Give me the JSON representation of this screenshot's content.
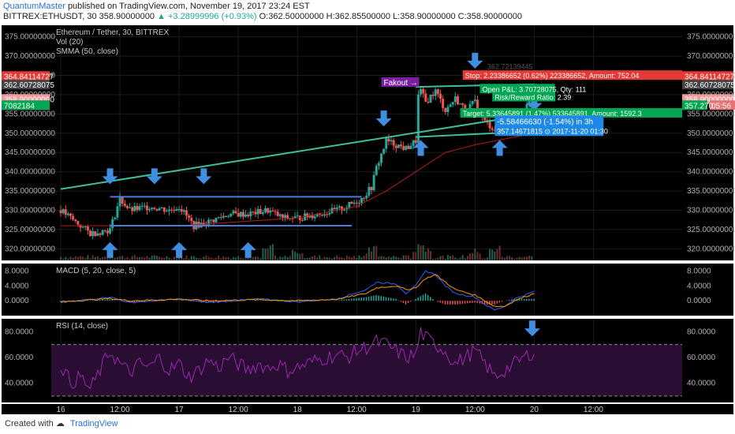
{
  "header": {
    "author": "QuantumMaster",
    "published_text": "published on TradingView.com, November 19, 2017 23:24 EST",
    "symbol": "BITTREX:ETHUSDT, 30",
    "last": "358.90000000",
    "change": "▲ +3.28999996 (+0.93%)",
    "o": "O:362.50000000",
    "h": "H:362.85500000",
    "l": "L:358.90000000",
    "c": "C:358.90000000"
  },
  "footer": {
    "created_with": "Created with",
    "brand": "TradingView"
  },
  "colors": {
    "bg": "#000000",
    "up": "#26a69a",
    "down": "#ef5350",
    "trend": "#3fbf9f",
    "support": "#4a7bd8",
    "smma": "#b71c1c",
    "macd": "#2962ff",
    "signal": "#ff9800",
    "rsi": "#9c27b0",
    "arrow": "#3f8fe0",
    "panel_text": "#b0b0b0"
  },
  "chart_data": [
    {
      "type": "candlestick",
      "title": "Ethereum / Tether, 30, BITTREX",
      "legend": [
        "Vol (20)",
        "SMMA (50, close)"
      ],
      "ylim": [
        317,
        378
      ],
      "yticks": [
        "375.00000000",
        "370.00000000",
        "365.00000000",
        "360.00000000",
        "355.00000000",
        "350.00000000",
        "345.00000000",
        "340.00000000",
        "335.00000000",
        "330.00000000",
        "325.00000000",
        "320.00000000"
      ],
      "ytick_values": [
        375,
        370,
        365,
        360,
        355,
        350,
        345,
        340,
        335,
        330,
        325,
        320
      ],
      "xticks": [
        "16",
        "12:00",
        "17",
        "12:00",
        "18",
        "12:00",
        "19",
        "12:00",
        "20",
        "12:00"
      ],
      "xtick_hours": [
        0,
        12,
        24,
        36,
        48,
        60,
        72,
        84,
        96,
        108
      ],
      "price_path": [
        [
          0,
          330
        ],
        [
          3,
          327
        ],
        [
          6,
          324
        ],
        [
          10,
          325
        ],
        [
          12,
          333
        ],
        [
          14,
          330
        ],
        [
          18,
          331
        ],
        [
          22,
          330
        ],
        [
          24,
          331
        ],
        [
          27,
          326
        ],
        [
          30,
          327
        ],
        [
          34,
          329
        ],
        [
          38,
          329
        ],
        [
          42,
          330
        ],
        [
          45,
          328
        ],
        [
          48,
          328
        ],
        [
          52,
          329
        ],
        [
          56,
          330
        ],
        [
          58,
          331
        ],
        [
          61,
          333
        ],
        [
          63,
          336
        ],
        [
          64,
          341
        ],
        [
          66,
          348
        ],
        [
          68,
          347
        ],
        [
          70,
          346
        ],
        [
          71,
          347
        ],
        [
          72,
          348
        ],
        [
          72.6,
          362
        ],
        [
          74,
          358
        ],
        [
          76,
          361
        ],
        [
          78,
          356
        ],
        [
          80,
          359
        ],
        [
          82,
          356
        ],
        [
          84,
          358
        ],
        [
          86,
          353
        ],
        [
          88,
          351
        ],
        [
          90,
          354
        ],
        [
          92,
          356
        ],
        [
          94,
          357
        ],
        [
          96,
          358.9
        ]
      ],
      "volume_spikes_hours": [
        42,
        48,
        63,
        72.6,
        74,
        84,
        88
      ],
      "smma_path": [
        [
          0,
          326
        ],
        [
          24,
          326
        ],
        [
          48,
          328
        ],
        [
          60,
          331
        ],
        [
          66,
          335
        ],
        [
          72,
          340
        ],
        [
          78,
          345
        ],
        [
          84,
          347
        ],
        [
          96,
          350
        ]
      ],
      "trendlines": [
        [
          [
            0,
            335.5
          ],
          [
            96,
            355
          ]
        ],
        [
          [
            72,
            349
          ],
          [
            96,
            350.5
          ]
        ],
        [
          [
            72,
            362
          ],
          [
            96,
            362.7
          ]
        ]
      ],
      "support_lines": [
        [
          [
            10,
            333.5
          ],
          [
            61,
            333.5
          ]
        ],
        [
          [
            10,
            326
          ],
          [
            59,
            326
          ]
        ]
      ],
      "arrows_down": [
        [
          10,
          338
        ],
        [
          19,
          338
        ],
        [
          29,
          338
        ],
        [
          65.5,
          353
        ],
        [
          84,
          368
        ],
        [
          96,
          357
        ]
      ],
      "arrows_up": [
        [
          10,
          320.5
        ],
        [
          24,
          320.5
        ],
        [
          38,
          320.5
        ],
        [
          73,
          347
        ],
        [
          89,
          347
        ]
      ],
      "price_labels": [
        {
          "text": "364.84114727",
          "color": "#e53935",
          "price": 364.84
        },
        {
          "text": "362.60728075",
          "color": "#444444",
          "price": 362.61
        },
        {
          "text": "358.90000000",
          "color": "#ef9a9a",
          "price": 358.9
        },
        {
          "text": "05:56",
          "color": "#e57373",
          "price": 357.27
        },
        {
          "text": "357.270",
          "color": "#00a651",
          "price": 357.27
        }
      ],
      "left_price_labels": [
        {
          "text": "364.84114727",
          "color": "#e53935",
          "price": 364.84
        },
        {
          "text": "362.60728075",
          "color": "#444444",
          "price": 362.61
        },
        {
          "text": "358.90000000",
          "color": "#ef9a9a",
          "price": 358.9
        },
        {
          "text": "05:56",
          "color": "#e57373",
          "price": 357.27
        },
        {
          "text": "7082184",
          "color": "#00a651",
          "price": 357.27
        }
      ],
      "annotations": {
        "fakeout": "Fakout →",
        "faded_label": "362.72139445",
        "stop": "Stop: 2.23386652 (0.62%) 223386652, Amount: 752.04",
        "open_pl": "Open P&L: 3.70728075, Qty: 111",
        "risk_reward": "Risk/Reward Ratio: 2.39",
        "target": "Target: 5.33645891 (1.47%) 533645891, Amount: 1592.3",
        "measure_line1": "-5.58466630 (-1.54%) in 3h",
        "measure_line2": "357.14671815 ⊙ 2017-11-20 01:30"
      }
    },
    {
      "type": "line",
      "title": "MACD (5, 20, close, 5)",
      "ylim": [
        -4,
        10
      ],
      "yticks": [
        "8.0000",
        "4.0000",
        "0.0000"
      ],
      "ytick_values": [
        8,
        4,
        0
      ],
      "series": [
        {
          "name": "MACD",
          "points": [
            [
              0,
              -0.5
            ],
            [
              10,
              1
            ],
            [
              14,
              -0.5
            ],
            [
              24,
              0.5
            ],
            [
              30,
              -0.5
            ],
            [
              40,
              0.5
            ],
            [
              48,
              -0.3
            ],
            [
              56,
              0.5
            ],
            [
              62,
              3
            ],
            [
              64,
              5
            ],
            [
              68,
              4.5
            ],
            [
              70,
              2
            ],
            [
              72,
              4
            ],
            [
              74,
              8
            ],
            [
              76,
              7
            ],
            [
              78,
              4
            ],
            [
              80,
              2
            ],
            [
              84,
              1
            ],
            [
              86,
              -1
            ],
            [
              88,
              -2.5
            ],
            [
              90,
              -1.5
            ],
            [
              92,
              0.5
            ],
            [
              94,
              1.5
            ],
            [
              96,
              2.5
            ]
          ]
        },
        {
          "name": "Signal",
          "points": [
            [
              0,
              -0.3
            ],
            [
              10,
              0.6
            ],
            [
              14,
              0
            ],
            [
              24,
              0.4
            ],
            [
              30,
              0
            ],
            [
              40,
              0.3
            ],
            [
              48,
              0
            ],
            [
              56,
              0.4
            ],
            [
              62,
              2
            ],
            [
              64,
              3.5
            ],
            [
              68,
              4
            ],
            [
              70,
              3
            ],
            [
              72,
              3.5
            ],
            [
              74,
              6
            ],
            [
              76,
              7
            ],
            [
              78,
              5
            ],
            [
              80,
              3
            ],
            [
              84,
              1.5
            ],
            [
              86,
              0
            ],
            [
              88,
              -1.5
            ],
            [
              90,
              -1.5
            ],
            [
              92,
              0
            ],
            [
              94,
              1
            ],
            [
              96,
              2
            ]
          ]
        }
      ]
    },
    {
      "type": "line",
      "title": "RSI (14, close)",
      "ylim": [
        25,
        90
      ],
      "yticks": [
        "80.0000",
        "60.0000",
        "40.0000"
      ],
      "ytick_values": [
        80,
        60,
        40
      ],
      "bands": [
        70,
        30
      ],
      "series": [
        {
          "name": "RSI",
          "points": [
            [
              0,
              55
            ],
            [
              2,
              40
            ],
            [
              4,
              45
            ],
            [
              6,
              35
            ],
            [
              8,
              50
            ],
            [
              10,
              65
            ],
            [
              12,
              55
            ],
            [
              14,
              48
            ],
            [
              16,
              55
            ],
            [
              18,
              52
            ],
            [
              20,
              60
            ],
            [
              22,
              50
            ],
            [
              24,
              55
            ],
            [
              26,
              45
            ],
            [
              28,
              50
            ],
            [
              30,
              58
            ],
            [
              32,
              52
            ],
            [
              34,
              60
            ],
            [
              36,
              55
            ],
            [
              38,
              50
            ],
            [
              40,
              55
            ],
            [
              42,
              52
            ],
            [
              44,
              55
            ],
            [
              46,
              50
            ],
            [
              48,
              52
            ],
            [
              50,
              55
            ],
            [
              52,
              58
            ],
            [
              54,
              60
            ],
            [
              56,
              62
            ],
            [
              58,
              60
            ],
            [
              60,
              65
            ],
            [
              62,
              68
            ],
            [
              64,
              72
            ],
            [
              66,
              70
            ],
            [
              68,
              65
            ],
            [
              70,
              60
            ],
            [
              72,
              62
            ],
            [
              73,
              80
            ],
            [
              74,
              75
            ],
            [
              76,
              70
            ],
            [
              78,
              65
            ],
            [
              80,
              55
            ],
            [
              82,
              60
            ],
            [
              84,
              65
            ],
            [
              86,
              55
            ],
            [
              88,
              45
            ],
            [
              90,
              50
            ],
            [
              92,
              55
            ],
            [
              94,
              60
            ],
            [
              96,
              65
            ]
          ]
        }
      ],
      "arrow_down": [
        95.6,
        80
      ]
    }
  ]
}
